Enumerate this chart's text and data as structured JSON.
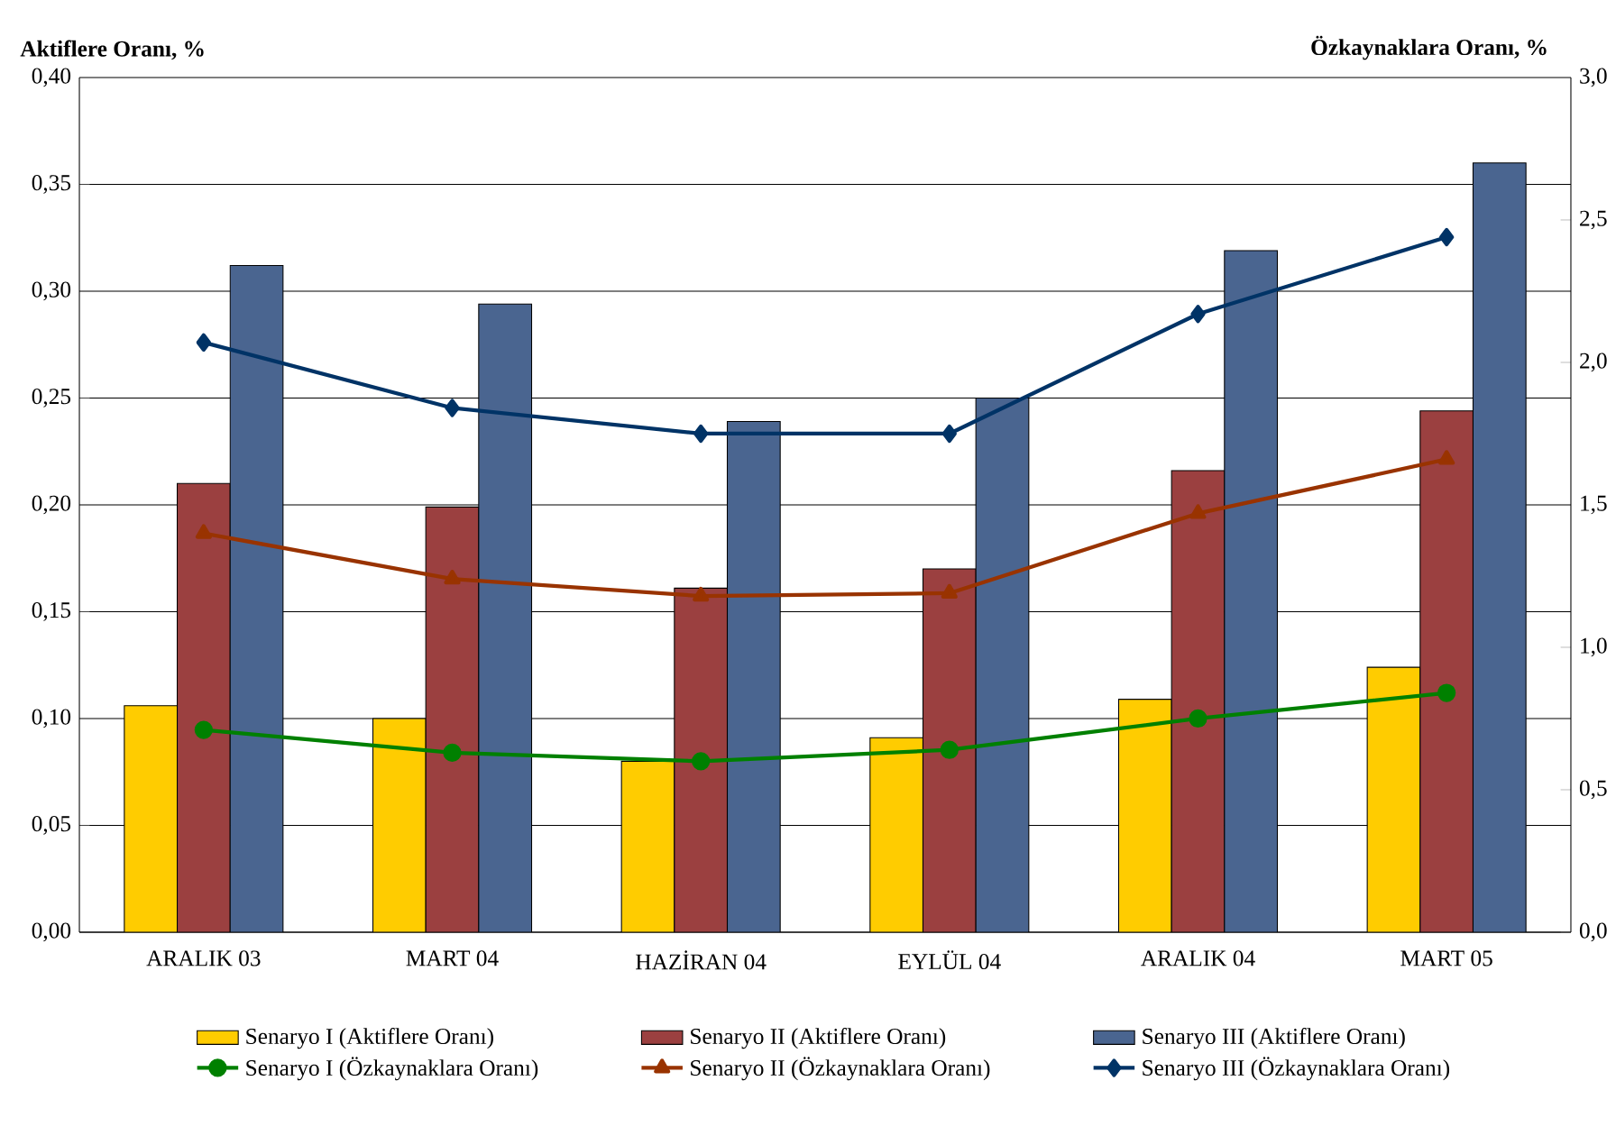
{
  "chart_data": {
    "type": "bar",
    "categories": [
      "ARALIK 03",
      "MART 04",
      "HAZİRAN 04",
      "EYLÜL 04",
      "ARALIK 04",
      "MART 05"
    ],
    "ylabel": "Aktiflere Oranı, %",
    "y2label": "Özkaynaklara Oranı, %",
    "ylim": [
      0,
      0.4
    ],
    "yticks": [
      {
        "value": 0,
        "label": "0,00"
      },
      {
        "value": 0.05,
        "label": "0,05"
      },
      {
        "value": 0.1,
        "label": "0,10"
      },
      {
        "value": 0.15,
        "label": "0,15"
      },
      {
        "value": 0.2,
        "label": "0,20"
      },
      {
        "value": 0.25,
        "label": "0,25"
      },
      {
        "value": 0.3,
        "label": "0,30"
      },
      {
        "value": 0.35,
        "label": "0,35"
      },
      {
        "value": 0.4,
        "label": "0,40"
      }
    ],
    "y2lim": [
      0,
      3
    ],
    "y2ticks": [
      {
        "value": 0,
        "label": "0,0"
      },
      {
        "value": 0.5,
        "label": "0,5"
      },
      {
        "value": 1,
        "label": "1,0"
      },
      {
        "value": 1.5,
        "label": "1,5"
      },
      {
        "value": 2,
        "label": "2,0"
      },
      {
        "value": 2.5,
        "label": "2,5"
      },
      {
        "value": 3,
        "label": "3,0"
      }
    ],
    "grid": "y",
    "legend": "bottom",
    "series": [
      {
        "name": "Senaryo I (Aktiflere Oranı)",
        "color": "#ffcc00",
        "values": [
          0.106,
          0.1,
          0.08,
          0.091,
          0.109,
          0.124
        ]
      },
      {
        "name": "Senaryo II (Aktiflere Oranı)",
        "color": "#9b4040",
        "values": [
          0.21,
          0.199,
          0.161,
          0.17,
          0.216,
          0.244
        ]
      },
      {
        "name": "Senaryo III (Aktiflere Oranı)",
        "color": "#4a6590",
        "values": [
          0.312,
          0.294,
          0.239,
          0.25,
          0.319,
          0.36
        ]
      },
      {
        "name": "Senaryo I (Özkaynaklara Oranı)",
        "type": "line",
        "axis": "y2",
        "marker": "circle",
        "color": "#008000",
        "values": [
          0.71,
          0.63,
          0.6,
          0.64,
          0.75,
          0.84
        ]
      },
      {
        "name": "Senaryo II (Özkaynaklara Oranı)",
        "type": "line",
        "axis": "y2",
        "marker": "triangle",
        "color": "#993300",
        "values": [
          1.4,
          1.24,
          1.18,
          1.19,
          1.47,
          1.66
        ]
      },
      {
        "name": "Senaryo III (Özkaynaklara Oranı)",
        "type": "line",
        "axis": "y2",
        "marker": "diamond",
        "color": "#003366",
        "values": [
          2.07,
          1.84,
          1.75,
          1.75,
          2.17,
          2.44
        ]
      }
    ]
  }
}
